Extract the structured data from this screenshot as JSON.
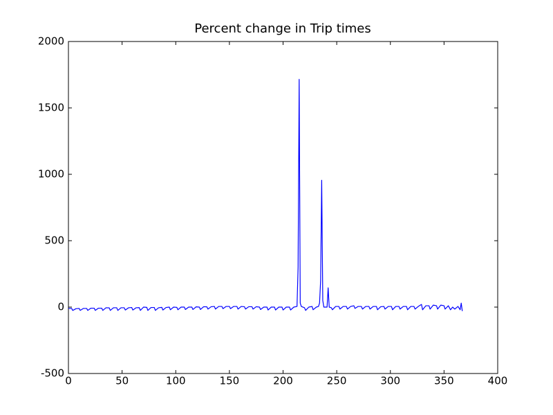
{
  "chart_data": {
    "type": "line",
    "title": "Percent change in Trip times",
    "x": [
      0,
      3,
      4,
      7,
      10,
      11,
      14,
      17,
      18,
      21,
      24,
      25,
      28,
      31,
      32,
      35,
      38,
      39,
      42,
      45,
      46,
      49,
      52,
      53,
      56,
      59,
      60,
      63,
      66,
      67,
      70,
      73,
      74,
      77,
      80,
      81,
      84,
      87,
      88,
      91,
      94,
      95,
      98,
      101,
      102,
      105,
      108,
      109,
      112,
      115,
      116,
      119,
      122,
      123,
      126,
      129,
      130,
      133,
      136,
      137,
      140,
      143,
      144,
      147,
      150,
      151,
      154,
      157,
      158,
      161,
      164,
      165,
      168,
      171,
      172,
      175,
      178,
      179,
      182,
      185,
      186,
      189,
      192,
      193,
      196,
      199,
      200,
      203,
      206,
      207,
      210,
      213,
      214,
      215,
      216,
      217,
      220,
      221,
      224,
      227,
      228,
      231,
      233,
      234,
      235,
      236,
      237,
      238,
      241,
      242,
      243,
      245,
      246,
      249,
      252,
      253,
      256,
      259,
      260,
      263,
      266,
      267,
      270,
      273,
      274,
      277,
      280,
      281,
      284,
      287,
      288,
      291,
      294,
      295,
      298,
      301,
      302,
      305,
      308,
      309,
      312,
      315,
      316,
      319,
      322,
      323,
      326,
      329,
      330,
      333,
      336,
      337,
      340,
      343,
      344,
      347,
      350,
      351,
      354,
      356,
      358,
      360,
      363,
      365,
      366,
      367
    ],
    "series": [
      {
        "color": "#0000ff",
        "values": [
          -10,
          -10,
          -25,
          -12,
          -10,
          -25,
          -10,
          -10,
          -25,
          -8,
          -8,
          -25,
          -8,
          -8,
          -25,
          -5,
          -6,
          -25,
          -5,
          -5,
          -25,
          -5,
          -5,
          -22,
          -5,
          -3,
          -22,
          -5,
          -4,
          -25,
          0,
          -2,
          -25,
          -3,
          -3,
          -25,
          -5,
          -2,
          -22,
          -3,
          0,
          -20,
          0,
          -2,
          -20,
          0,
          0,
          -18,
          0,
          0,
          -18,
          2,
          0,
          -18,
          3,
          2,
          -15,
          3,
          5,
          -15,
          5,
          5,
          -12,
          5,
          5,
          -12,
          5,
          5,
          -15,
          5,
          3,
          -15,
          3,
          3,
          -15,
          3,
          0,
          -18,
          0,
          0,
          -22,
          0,
          0,
          -22,
          0,
          0,
          -22,
          0,
          0,
          -22,
          0,
          5,
          300,
          1715,
          30,
          5,
          -5,
          -25,
          0,
          5,
          -20,
          0,
          5,
          30,
          200,
          955,
          50,
          0,
          0,
          145,
          0,
          -5,
          -20,
          5,
          5,
          -15,
          5,
          5,
          -15,
          5,
          10,
          -10,
          5,
          5,
          -15,
          5,
          5,
          -15,
          5,
          5,
          -20,
          3,
          5,
          -15,
          5,
          5,
          -20,
          5,
          5,
          -15,
          5,
          5,
          -20,
          5,
          5,
          -15,
          5,
          20,
          -20,
          10,
          10,
          -15,
          15,
          10,
          -15,
          15,
          10,
          -15,
          10,
          -20,
          0,
          -15,
          5,
          -20,
          30,
          -30
        ]
      }
    ],
    "xlim": [
      0,
      400
    ],
    "xticks": [
      0,
      50,
      100,
      150,
      200,
      250,
      300,
      350,
      400
    ],
    "ylim": [
      -500,
      2000
    ],
    "yticks": [
      -500,
      0,
      500,
      1000,
      1500,
      2000
    ]
  }
}
